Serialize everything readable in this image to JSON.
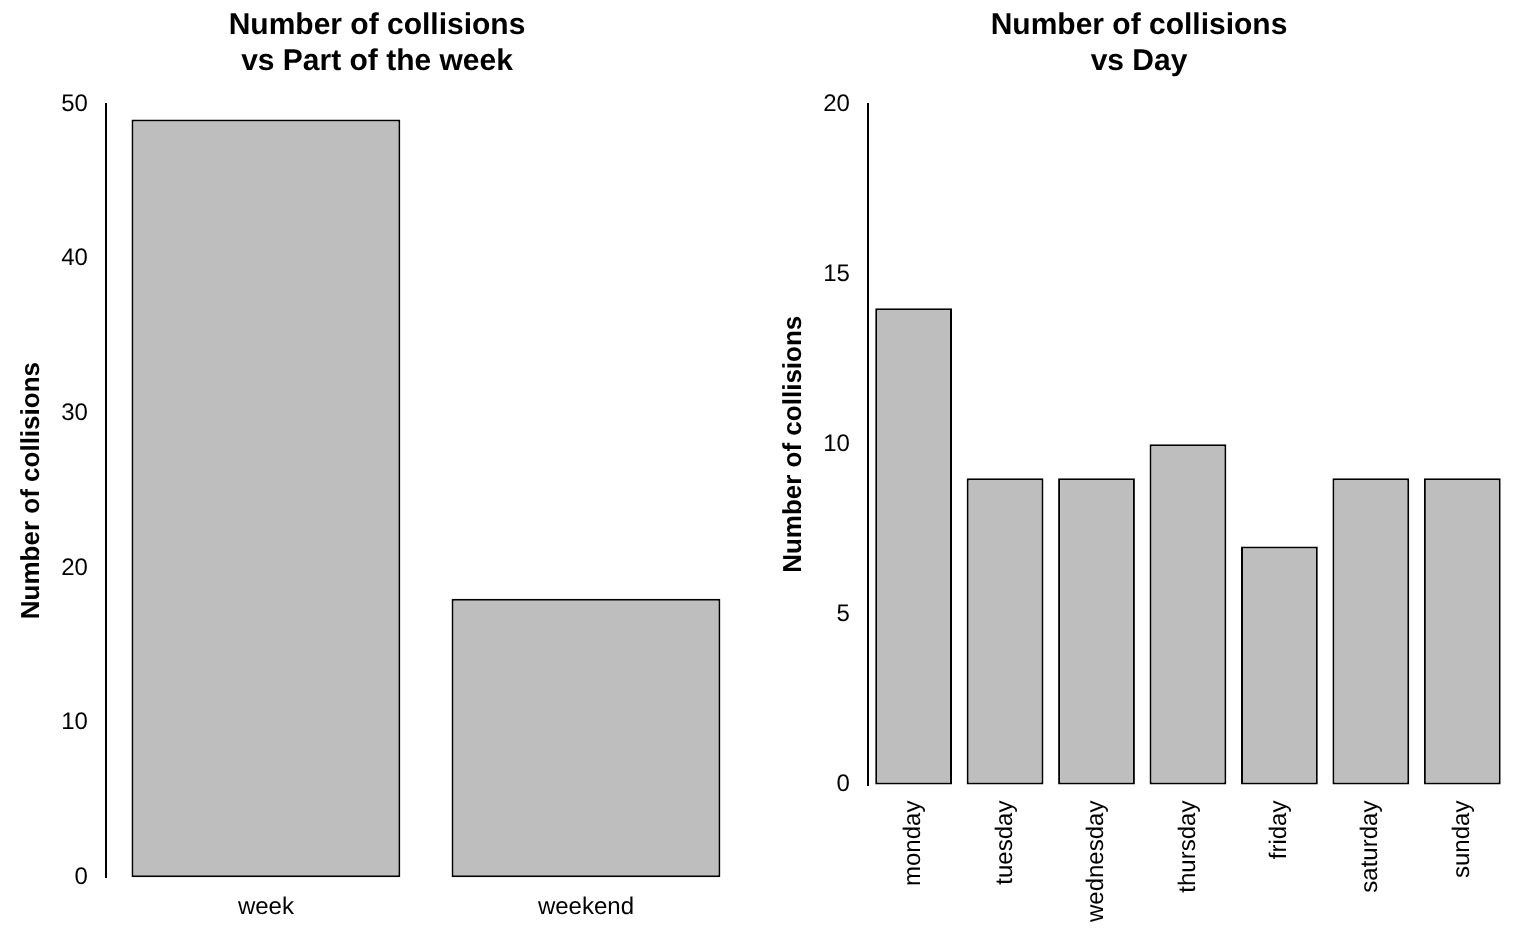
{
  "chart_data": [
    {
      "type": "bar",
      "title": "Number of collisions\nvs Part of the week",
      "ylabel": "Number of collisions",
      "categories": [
        "week",
        "weekend"
      ],
      "values": [
        49,
        18
      ],
      "color": "#bebebe",
      "ylim": [
        0,
        50
      ],
      "yticks": [
        0,
        10,
        20,
        30,
        40,
        50
      ]
    },
    {
      "type": "bar",
      "title": "Number of collisions\nvs Day",
      "ylabel": "Number of collisions",
      "categories": [
        "monday",
        "tuesday",
        "wednesday",
        "thursday",
        "friday",
        "saturday",
        "sunday"
      ],
      "values": [
        14,
        9,
        9,
        10,
        7,
        9,
        9
      ],
      "color": "#bebebe",
      "ylim": [
        0,
        20
      ],
      "yticks": [
        0,
        5,
        10,
        15,
        20
      ]
    }
  ]
}
